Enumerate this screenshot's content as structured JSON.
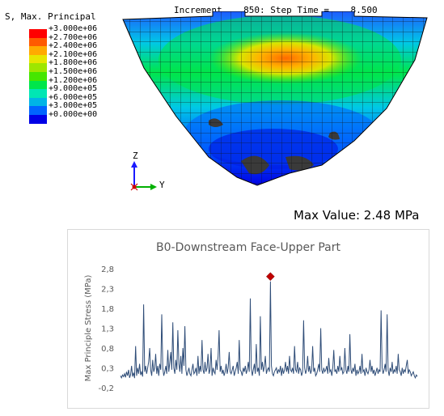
{
  "legend": {
    "title": "S, Max. Principal",
    "entries": [
      {
        "label": "+3.000e+06",
        "color": "#ff0000"
      },
      {
        "label": "+2.700e+06",
        "color": "#ff5a00"
      },
      {
        "label": "+2.400e+06",
        "color": "#ffaa00"
      },
      {
        "label": "+2.100e+06",
        "color": "#e6e600"
      },
      {
        "label": "+1.800e+06",
        "color": "#9ee600"
      },
      {
        "label": "+1.500e+06",
        "color": "#46e600"
      },
      {
        "label": "+1.200e+06",
        "color": "#00e64b"
      },
      {
        "label": "+9.000e+05",
        "color": "#00e6b4"
      },
      {
        "label": "+6.000e+05",
        "color": "#00b4e6"
      },
      {
        "label": "+3.000e+05",
        "color": "#0064ff"
      },
      {
        "label": "+0.000e+00",
        "color": "#0000e6"
      }
    ]
  },
  "status": {
    "text": "Increment    850: Step Time =    8.500"
  },
  "triad": {
    "z_label": "Z",
    "y_label": "Y"
  },
  "max_value_label": "Max Value: 2.48 MPa",
  "colors": {
    "line": "#2f4d78",
    "marker": "#c00000",
    "axis_text": "#595959",
    "title_text": "#595959",
    "grid": "#d9d9d9"
  },
  "chart_data": {
    "type": "line",
    "title": "B0-Downstream Face-Upper Part",
    "xlabel": "",
    "ylabel": "Max Principle Stress (MPa)",
    "yticks": [
      "2,8",
      "2,3",
      "1,8",
      "1,3",
      "0,8",
      "0,3",
      "-0,2"
    ],
    "ylim": [
      -0.2,
      2.8
    ],
    "grid": false,
    "x_range": [
      0,
      100
    ],
    "series": [
      {
        "values": [
          0.1,
          0.05,
          0.12,
          0.08,
          0.15,
          0.06,
          0.2,
          0.1,
          0.25,
          0.05,
          0.12,
          0.35,
          0.08,
          0.18,
          0.04,
          0.85,
          0.1,
          0.3,
          0.15,
          0.4,
          0.12,
          0.2,
          0.08,
          1.9,
          0.2,
          0.35,
          0.15,
          0.3,
          0.45,
          0.8,
          0.25,
          0.1,
          0.5,
          0.2,
          0.3,
          0.65,
          0.15,
          0.35,
          0.1,
          0.4,
          0.25,
          1.65,
          0.3,
          0.1,
          0.2,
          0.35,
          0.15,
          0.75,
          0.2,
          0.45,
          0.7,
          0.25,
          1.45,
          0.3,
          0.15,
          0.5,
          0.25,
          1.25,
          0.4,
          0.2,
          0.6,
          0.15,
          0.8,
          0.35,
          1.35,
          0.25,
          0.1,
          0.2,
          0.3,
          0.15,
          0.1,
          0.25,
          0.4,
          0.15,
          0.2,
          0.3,
          0.1,
          0.6,
          0.15,
          0.35,
          0.2,
          1.0,
          0.25,
          0.15,
          0.45,
          0.2,
          0.3,
          0.65,
          0.15,
          0.25,
          0.8,
          0.1,
          0.3,
          0.2,
          0.15,
          0.5,
          0.25,
          0.6,
          1.25,
          0.2,
          0.35,
          0.15,
          0.25,
          0.1,
          0.2,
          0.4,
          0.15,
          0.3,
          0.7,
          0.2,
          0.15,
          0.25,
          0.35,
          0.1,
          0.2,
          0.3,
          0.45,
          0.15,
          1.0,
          0.25,
          0.2,
          0.1,
          0.3,
          0.2,
          0.35,
          0.15,
          0.25,
          0.45,
          0.2,
          2.05,
          0.3,
          0.1,
          0.25,
          0.4,
          0.15,
          0.9,
          0.2,
          0.3,
          0.1,
          1.6,
          0.25,
          0.45,
          0.2,
          0.35,
          0.6,
          0.15,
          0.25,
          0.3,
          0.2,
          2.48,
          0.35,
          0.15,
          0.1,
          0.2,
          0.25,
          0.3,
          0.15,
          0.25,
          0.2,
          0.35,
          0.1,
          0.3,
          0.15,
          0.25,
          0.45,
          0.2,
          0.35,
          0.15,
          0.6,
          0.25,
          0.2,
          0.3,
          0.15,
          0.85,
          0.25,
          0.2,
          0.45,
          0.15,
          0.3,
          0.25,
          0.1,
          0.2,
          1.5,
          0.3,
          0.15,
          0.25,
          0.6,
          0.2,
          0.35,
          0.15,
          0.25,
          0.85,
          0.2,
          0.3,
          0.1,
          0.15,
          0.25,
          0.4,
          0.2,
          1.3,
          0.25,
          0.15,
          0.3,
          0.2,
          0.25,
          0.35,
          0.15,
          0.55,
          0.2,
          0.25,
          0.1,
          0.3,
          0.75,
          0.2,
          0.25,
          0.15,
          0.35,
          0.2,
          0.6,
          0.25,
          0.3,
          0.15,
          0.2,
          0.8,
          0.25,
          0.15,
          0.35,
          0.2,
          1.15,
          0.25,
          0.15,
          0.3,
          0.2,
          0.4,
          0.1,
          0.25,
          0.15,
          0.2,
          0.35,
          0.15,
          0.65,
          0.2,
          0.25,
          0.1,
          0.3,
          0.2,
          0.15,
          0.25,
          0.5,
          0.2,
          0.35,
          0.15,
          0.25,
          0.1,
          0.2,
          0.3,
          0.15,
          0.25,
          0.2,
          1.75,
          0.3,
          0.15,
          0.25,
          0.4,
          0.2,
          1.65,
          0.25,
          0.1,
          0.3,
          0.2,
          0.45,
          0.15,
          0.25,
          0.2,
          0.35,
          0.15,
          0.65,
          0.25,
          0.2,
          0.1,
          0.3,
          0.15,
          0.25,
          0.2,
          0.35,
          0.5,
          0.15,
          0.25,
          0.2,
          0.1,
          0.15,
          0.2,
          0.1,
          0.05,
          0.12,
          0.08
        ]
      }
    ],
    "annotations": [
      {
        "type": "max-marker",
        "value": 2.48
      }
    ]
  }
}
